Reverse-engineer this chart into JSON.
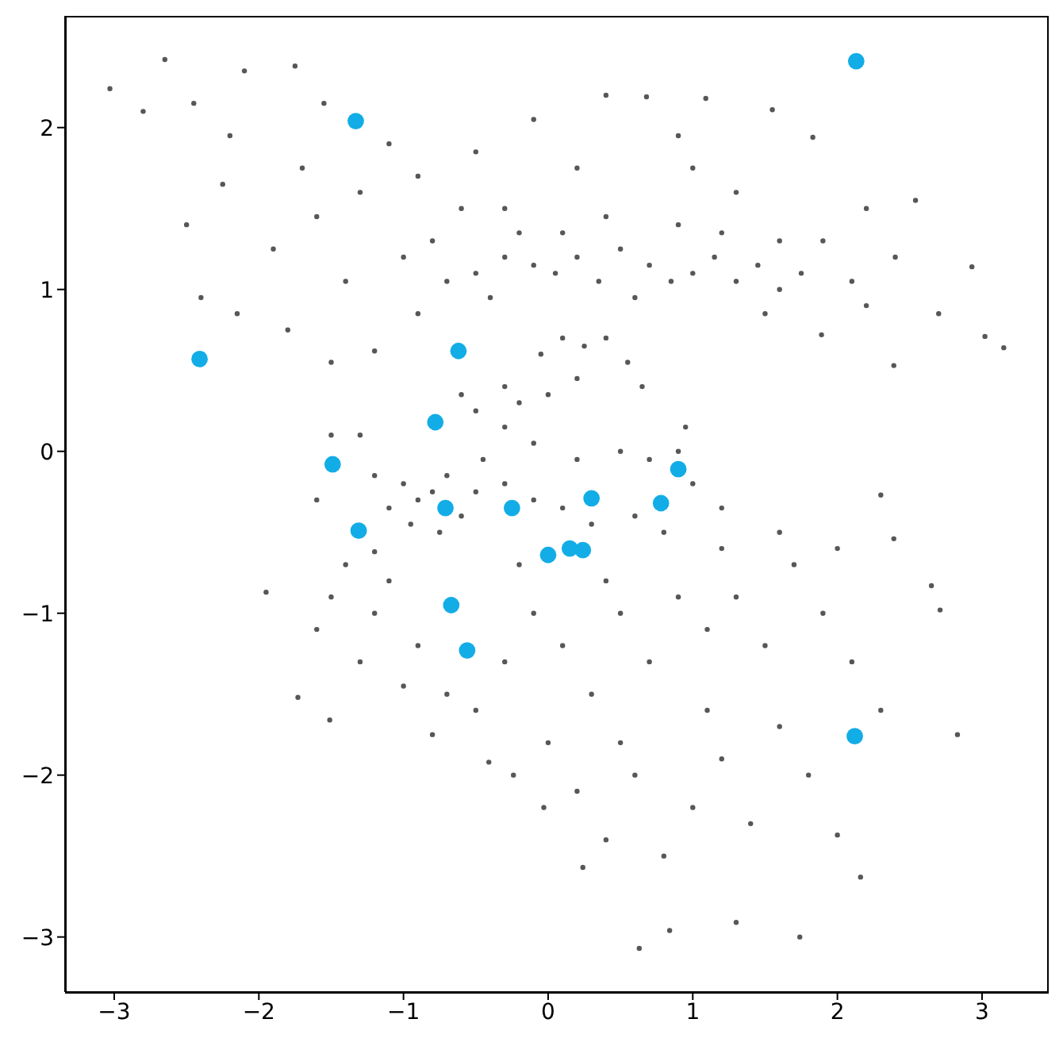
{
  "chart_data": {
    "type": "scatter",
    "marker": "circle",
    "xlim": [
      -3.34,
      3.45
    ],
    "ylim": [
      -3.34,
      2.69
    ],
    "xticks": [
      -3,
      -2,
      -1,
      0,
      1,
      2,
      3
    ],
    "yticks": [
      -3,
      -2,
      -1,
      0,
      1,
      2
    ],
    "series": [
      {
        "color": "#3a3a3a",
        "x": [
          -3.03,
          -2.65,
          -2.8,
          -2.45,
          -2.2,
          -2.1,
          -1.75,
          -1.55,
          -1.7,
          -2.25,
          -2.5,
          -2.4,
          -2.15,
          -1.9,
          -1.6,
          -1.3,
          -1.1,
          -0.9,
          -1.4,
          -1.8,
          -1.5,
          -1.2,
          -0.9,
          -0.5,
          -0.3,
          -0.1,
          0.4,
          0.68,
          1.09,
          1.55,
          1.83,
          0.9,
          1.0,
          0.2,
          1.3,
          1.6,
          1.9,
          2.1,
          2.4,
          2.54,
          2.2,
          2.93,
          3.15,
          3.02,
          2.39,
          1.89,
          2.7,
          2.2,
          -0.7,
          -0.5,
          -0.3,
          -0.1,
          0.05,
          0.2,
          0.35,
          0.5,
          0.7,
          0.85,
          1.0,
          1.15,
          1.3,
          1.45,
          1.6,
          1.75,
          -0.4,
          0.1,
          0.6,
          1.2,
          0.9,
          -0.2,
          0.4,
          1.5,
          -0.8,
          -1.0,
          -0.6,
          -0.05,
          0.1,
          0.25,
          0.4,
          0.55,
          0.2,
          0.0,
          0.65,
          -0.3,
          0.95,
          -0.5,
          -0.3,
          -0.1,
          0.2,
          0.5,
          0.7,
          0.9,
          1.0,
          1.2,
          -0.6,
          -0.2,
          -0.45,
          -1.3,
          -1.5,
          -1.6,
          -1.0,
          -0.9,
          -0.8,
          -0.7,
          -1.1,
          -0.95,
          -0.6,
          -0.75,
          -1.2,
          -1.2,
          -0.5,
          -0.3,
          -0.1,
          0.1,
          0.3,
          0.6,
          0.8,
          -1.95,
          -1.73,
          -1.51,
          -1.5,
          -1.6,
          -1.3,
          -1.1,
          -0.9,
          -0.7,
          -0.5,
          -0.3,
          -0.1,
          0.1,
          0.3,
          0.5,
          0.7,
          0.9,
          1.1,
          1.3,
          1.5,
          1.7,
          1.9,
          2.1,
          2.3,
          2.83,
          2.65,
          2.71,
          2.3,
          2.39,
          0.0,
          0.2,
          0.4,
          0.6,
          0.8,
          1.0,
          1.2,
          1.4,
          1.6,
          1.8,
          0.63,
          1.74,
          0.84,
          1.3,
          2.16,
          2.0,
          0.24,
          -0.03,
          -0.24,
          -0.41,
          -1.2,
          -1.4,
          -1.0,
          -0.8,
          1.6,
          2.0,
          1.1,
          0.5,
          -0.2,
          0.4,
          1.2
        ],
        "values": [
          2.24,
          2.42,
          2.1,
          2.15,
          1.95,
          2.35,
          2.38,
          2.15,
          1.75,
          1.65,
          1.4,
          0.95,
          0.85,
          1.25,
          1.45,
          1.6,
          1.9,
          1.7,
          1.05,
          0.75,
          0.55,
          0.62,
          0.85,
          1.85,
          1.5,
          2.05,
          2.2,
          2.19,
          2.18,
          2.11,
          1.94,
          1.95,
          1.75,
          1.75,
          1.6,
          1.3,
          1.3,
          1.05,
          1.2,
          1.55,
          1.5,
          1.14,
          0.64,
          0.71,
          0.53,
          0.72,
          0.85,
          0.9,
          1.05,
          1.1,
          1.2,
          1.15,
          1.1,
          1.2,
          1.05,
          1.25,
          1.15,
          1.05,
          1.1,
          1.2,
          1.05,
          1.15,
          1.0,
          1.1,
          0.95,
          1.35,
          0.95,
          1.35,
          1.4,
          1.35,
          1.45,
          0.85,
          1.3,
          1.2,
          1.5,
          0.6,
          0.7,
          0.65,
          0.7,
          0.55,
          0.45,
          0.35,
          0.4,
          0.4,
          0.15,
          0.25,
          0.15,
          0.05,
          -0.05,
          0.0,
          -0.05,
          0.0,
          -0.2,
          -0.35,
          0.35,
          0.3,
          -0.05,
          0.1,
          0.1,
          -0.3,
          -0.2,
          -0.3,
          -0.25,
          -0.15,
          -0.35,
          -0.45,
          -0.4,
          -0.5,
          -0.15,
          -0.62,
          -0.25,
          -0.2,
          -0.3,
          -0.35,
          -0.45,
          -0.4,
          -0.5,
          -0.87,
          -1.52,
          -1.66,
          -0.9,
          -1.1,
          -1.3,
          -0.8,
          -1.2,
          -1.5,
          -1.6,
          -1.3,
          -1.0,
          -1.2,
          -1.5,
          -1.0,
          -1.3,
          -0.9,
          -1.1,
          -0.9,
          -1.2,
          -0.7,
          -1.0,
          -1.3,
          -1.6,
          -1.75,
          -0.83,
          -0.98,
          -0.27,
          -0.54,
          -1.8,
          -2.1,
          -2.4,
          -2.0,
          -2.5,
          -2.2,
          -1.9,
          -2.3,
          -1.7,
          -2.0,
          -3.07,
          -3.0,
          -2.96,
          -2.91,
          -2.63,
          -2.37,
          -2.57,
          -2.2,
          -2.0,
          -1.92,
          -1.0,
          -0.7,
          -1.45,
          -1.75,
          -0.5,
          -0.6,
          -1.6,
          -1.8,
          -0.7,
          -0.8,
          -0.6
        ]
      },
      {
        "color": "#12ade6",
        "x": [
          -1.33,
          2.13,
          -2.41,
          -0.62,
          -0.78,
          -1.49,
          0.9,
          -1.31,
          -0.71,
          -0.25,
          0.3,
          0.78,
          0.0,
          0.15,
          0.24,
          -0.67,
          -0.56,
          2.12
        ],
        "values": [
          2.04,
          2.41,
          0.57,
          0.62,
          0.18,
          -0.08,
          -0.11,
          -0.49,
          -0.35,
          -0.35,
          -0.29,
          -0.32,
          -0.64,
          -0.6,
          -0.61,
          -0.95,
          -1.23,
          -1.76
        ]
      }
    ]
  }
}
